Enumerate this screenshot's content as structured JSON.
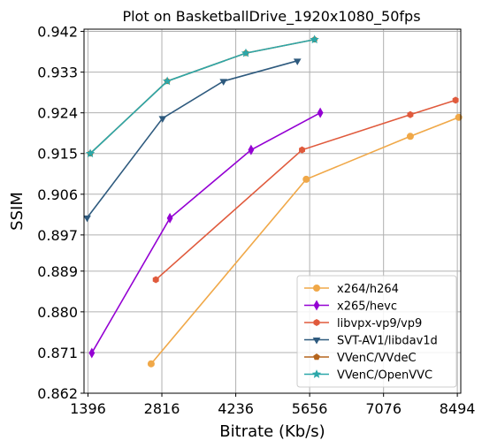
{
  "chart_data": {
    "type": "line",
    "title": "Plot on BasketballDrive_1920x1080_50fps",
    "xlabel": "Bitrate (Kb/s)",
    "ylabel": "SSIM",
    "xlim": [
      1320,
      8560
    ],
    "ylim": [
      0.862,
      0.9425
    ],
    "xticks": [
      1396,
      2816,
      4236,
      5656,
      7076,
      8494
    ],
    "xtick_labels": [
      "1396",
      "2816",
      "4236",
      "5656",
      "7076",
      "8494"
    ],
    "yticks": [
      0.862,
      0.871,
      0.88,
      0.889,
      0.897,
      0.906,
      0.915,
      0.924,
      0.933,
      0.942
    ],
    "ytick_labels": [
      "0.862",
      "0.871",
      "0.880",
      "0.889",
      "0.897",
      "0.906",
      "0.915",
      "0.924",
      "0.933",
      "0.942"
    ],
    "grid": true,
    "legend_position": "lower-right",
    "series": [
      {
        "name": "x264/h264",
        "color": "#f0a848",
        "marker": "circle",
        "x": [
          2610,
          5590,
          7590,
          8520
        ],
        "y": [
          0.8685,
          0.9093,
          0.9188,
          0.923
        ]
      },
      {
        "name": "x265/hevc",
        "color": "#9400d3",
        "marker": "diamond",
        "x": [
          1470,
          2970,
          4530,
          5860
        ],
        "y": [
          0.8709,
          0.9007,
          0.9158,
          0.924
        ]
      },
      {
        "name": "libvpx-vp9/vp9",
        "color": "#e05a3c",
        "marker": "hexagon",
        "x": [
          2700,
          5510,
          7590,
          8460
        ],
        "y": [
          0.8871,
          0.9158,
          0.9236,
          0.9268
        ]
      },
      {
        "name": "SVT-AV1/libdav1d",
        "color": "#2e5a7e",
        "marker": "triangle-down",
        "x": [
          1380,
          2830,
          4000,
          5420
        ],
        "y": [
          0.9008,
          0.9228,
          0.931,
          0.9355
        ]
      },
      {
        "name": "VVenC/VVdeC",
        "color": "#b5651d",
        "marker": "pentagon",
        "x": [
          1440,
          2920,
          4430,
          5750
        ],
        "y": [
          0.915,
          0.931,
          0.9372,
          0.9402
        ]
      },
      {
        "name": "VVenC/OpenVVC",
        "color": "#2ca7a9",
        "marker": "star",
        "x": [
          1440,
          2920,
          4430,
          5750
        ],
        "y": [
          0.915,
          0.931,
          0.9372,
          0.9402
        ]
      }
    ]
  }
}
